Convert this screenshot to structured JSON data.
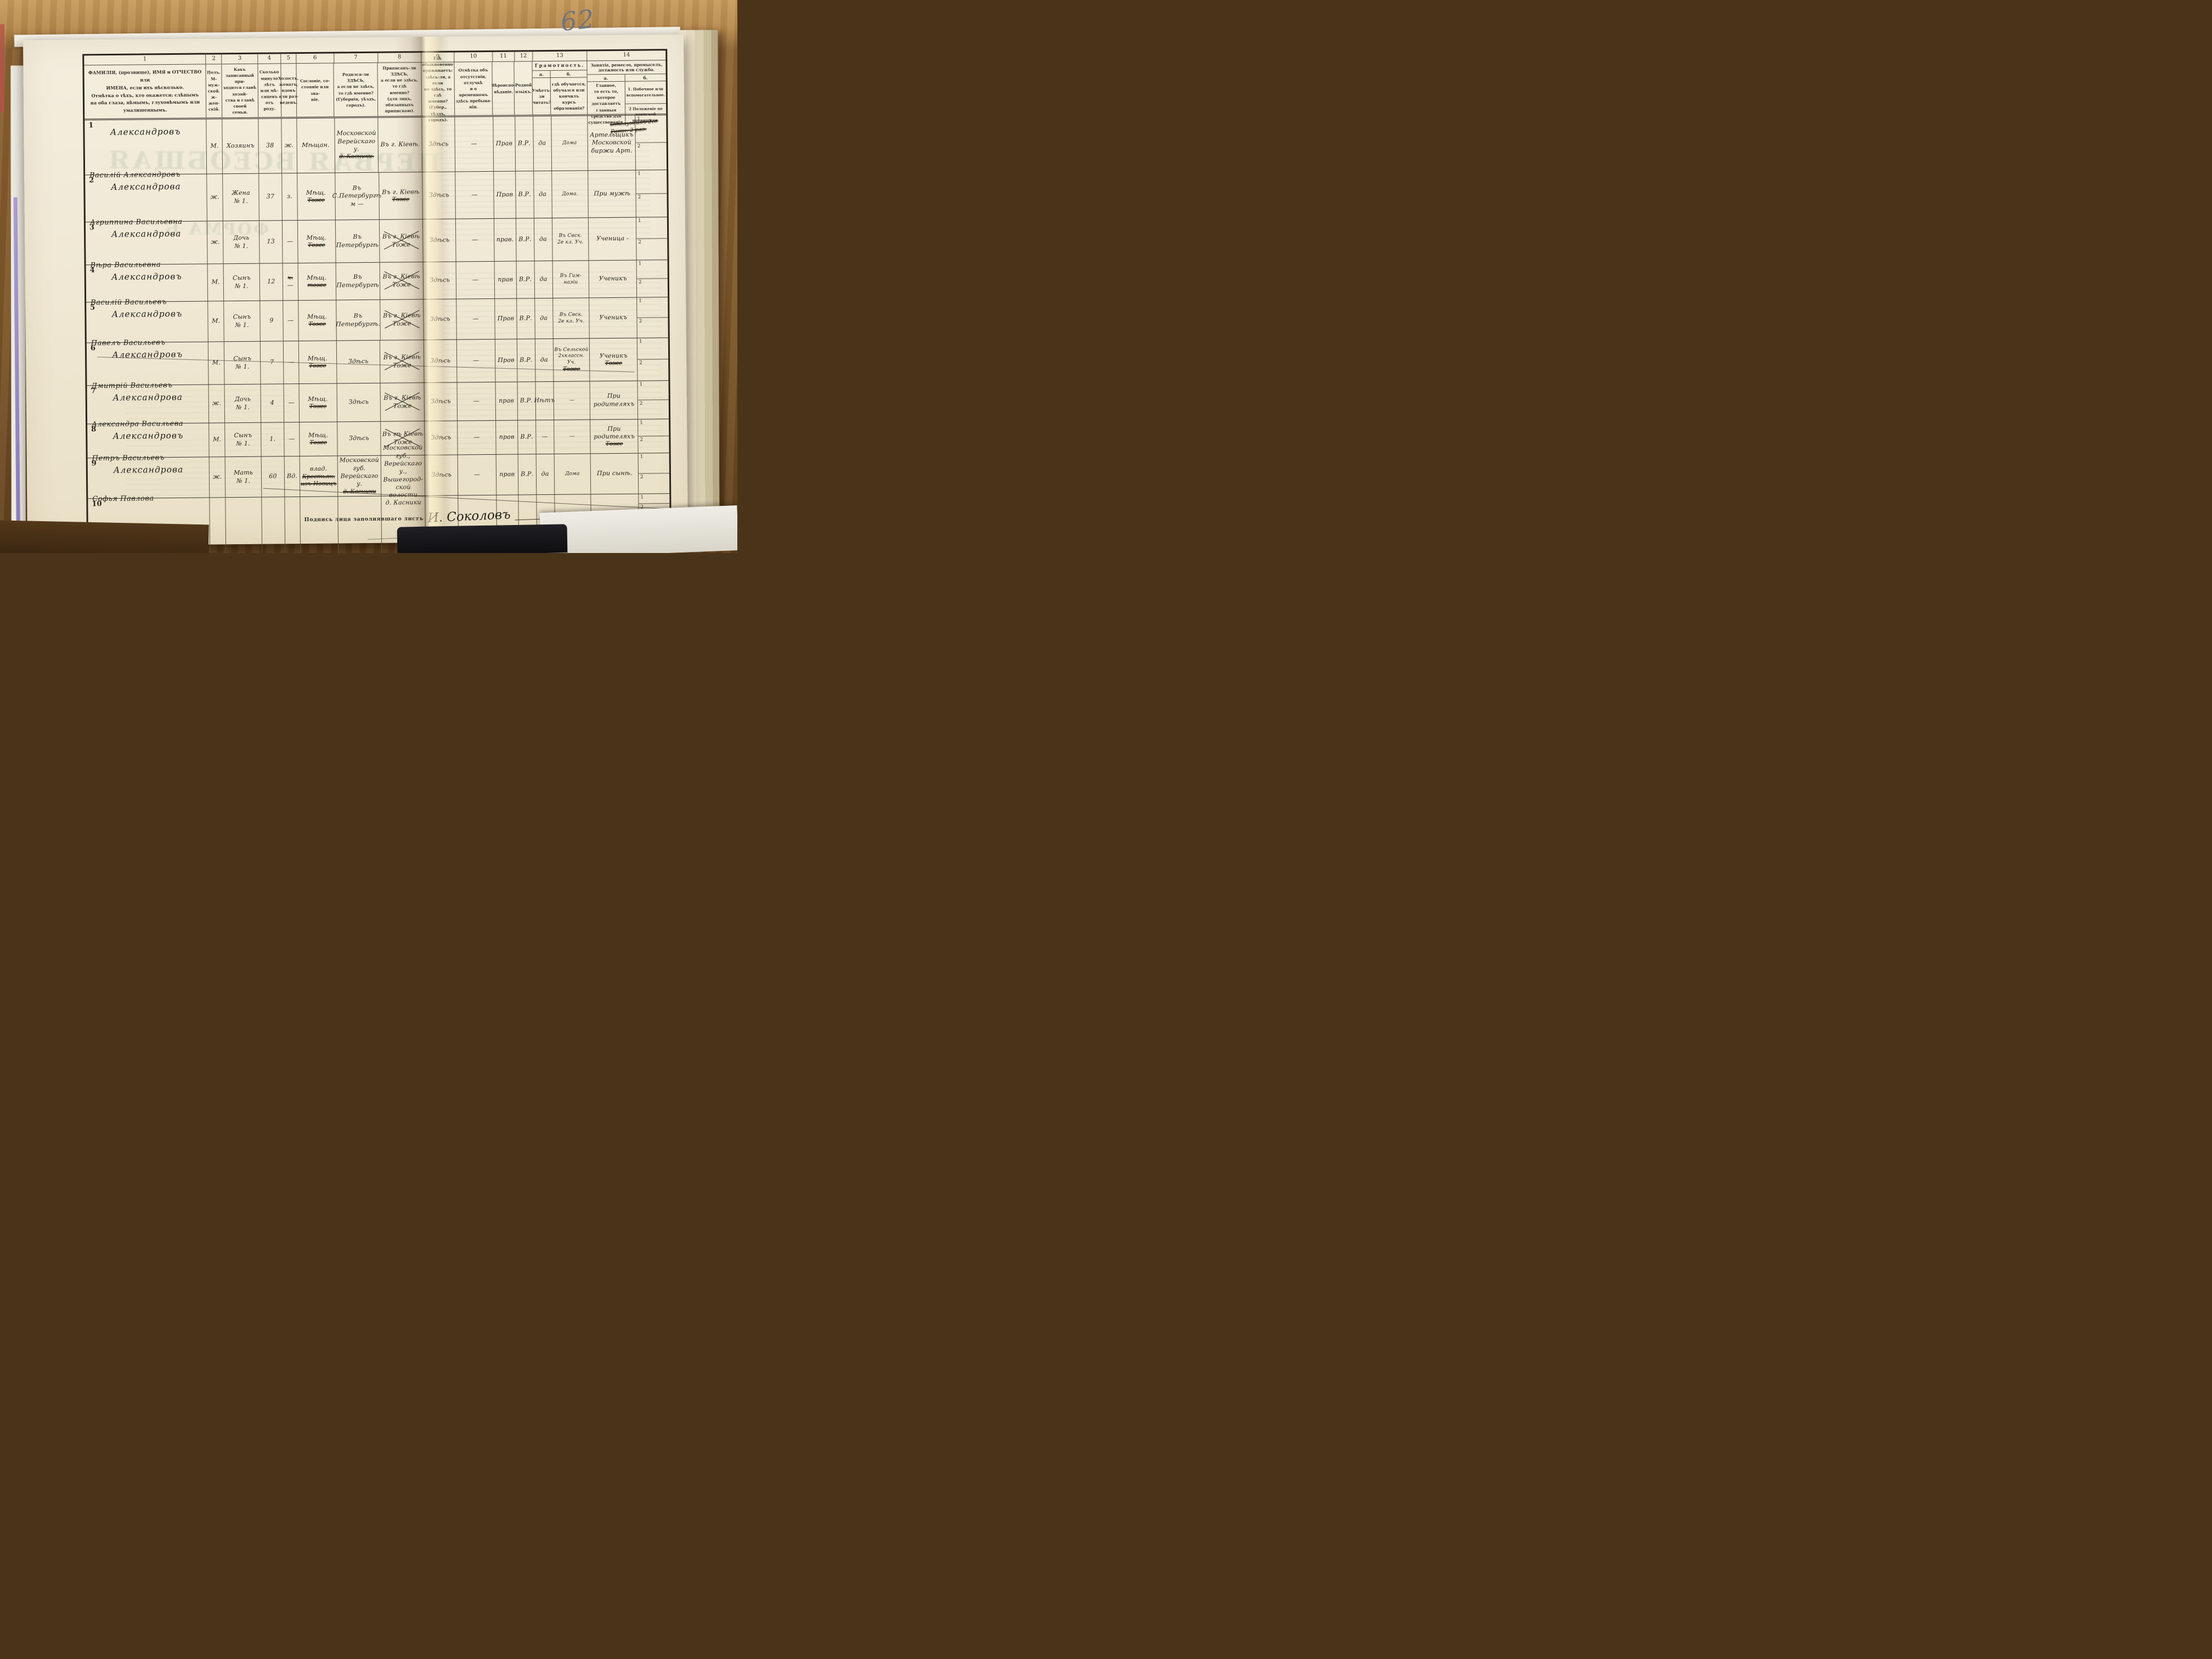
{
  "page": {
    "pencil_number": "62"
  },
  "header": {
    "numbers": [
      "1",
      "2",
      "3",
      "4",
      "5",
      "6",
      "7",
      "8",
      "9",
      "10",
      "11",
      "12",
      "13",
      "14"
    ],
    "c1": "ФАМИЛІЯ, (прозвище), ИМЯ и ОТЧЕСТВО или\nИМЕНА, если ихъ нѣсколько.\nОтмѣтка о тѣхъ, кто окажется: слѣпымъ\nна оба глаза, нѣмымъ, глухонѣмымъ или\nумалишеннымъ.",
    "c2": "Полъ.\nМ-муж-\nской.\nж-жен-\nскій.",
    "c3": "Какъ записанный при-\nходится главѣ хозяй-\nства и главѣ своей\nсемьи.",
    "c4": "Сколько\nминуло\nлѣтъ\nили мѣ-\nсяцевъ\nотъ роду.",
    "c5": "Холостъ,\nженатъ,\nвдовъ\nили раз-\nведенъ.",
    "c6": "Сословіе, со-\nстояніе или зва-\nніе.",
    "c7": "Родился-ли ЗДѢСЬ,\nа если не здѣсь,\nто гдѣ именно?\n(Губернія, уѣздъ, городъ).",
    "c8": "Приписанъ-ли ЗДѢСЬ,\nа если не здѣсь, то гдѣ\nименно?\n(для лицъ, обязанныхъ\nприпискою).",
    "c9": "Гдѣ обыкновенно\nпроживаетъ:\nздѣсь-ли, а если\nне здѣсь, то гдѣ\nименно?\n(Губер., уѣздъ, городъ).",
    "c10": "Отмѣтка объ\nотсутствіи, отлучкѣ\nи о временномъ\nздѣсь пребыва-\nніи.",
    "c11": "Вѣроиспо-\nвѣданіе.",
    "c12": "Родной\nязыкъ.",
    "c13": {
      "title": "Грамотность.",
      "a_label": "а.",
      "b_label": "б.",
      "a": "Умѣетъ-\nли\nчитать?",
      "b": "гдѣ обучается,\nобучался или\nкончилъ курсъ\nобразованія?"
    },
    "c14": {
      "title": "Занятіе, ремесло, промыселъ, должность или служба.",
      "a_label": "а.",
      "b_label": "б.",
      "a": "Главное,\nто есть то, которое доставляетъ\nглавныя средства для существованія.",
      "b1": "1. Побочное или вспомогательное.",
      "b2": "2  Положеніе по воинской повинности."
    }
  },
  "militia_labels": {
    "first": "1",
    "second": "2"
  },
  "rows": [
    {
      "num": "1",
      "surname": "Александровъ",
      "given": "Василій Александровъ",
      "sex": "М.",
      "rel": "Хозяинъ",
      "age": "38",
      "marital": "ж.",
      "marital_x": "",
      "estate": "Мѣщан.",
      "estate_x": "",
      "born": "Московской\nВерейскаго у.",
      "born_x": "д. Касники.",
      "ascr": "Въ г. Кіевѣ.",
      "ascr_x": "",
      "has_x": false,
      "resides": "Здѣсь",
      "absence": "—",
      "faith": "Прав",
      "lang": "В.Р.",
      "reads": "да",
      "edu": "Дома",
      "edu_x": "",
      "occ": "Артельщикъ\nМосковской биржи Арт.",
      "occ_x": "",
      "mil_x": "Отслужилъ 2го\nРатн. 2 раз."
    },
    {
      "num": "2",
      "surname": "Александрова",
      "given": "Агриппина Васильевна",
      "sex": "ж.",
      "rel": "Жена\n№ 1.",
      "age": "37",
      "marital": "з.",
      "marital_x": "",
      "estate": "Мѣщ.",
      "estate_x": "Тоже",
      "born": "Въ С.Петербургѣ\nм —",
      "born_x": "",
      "ascr": "Въ г. Кіевѣ",
      "ascr_x": "Тоже",
      "has_x": false,
      "resides": "Здѣсь",
      "absence": "—",
      "faith": "Прав",
      "lang": "В.Р.",
      "reads": "да",
      "edu": "Дома.",
      "edu_x": "",
      "occ": "При мужѣ",
      "occ_x": "",
      "mil_x": ""
    },
    {
      "num": "3",
      "surname": "Александрова",
      "given": "Вѣра Васильевна",
      "sex": "ж.",
      "rel": "Дочь\n№ 1.",
      "age": "13",
      "marital": "—",
      "marital_x": "",
      "estate": "Мѣщ.",
      "estate_x": "Тоже",
      "born": "Въ Петербургѣ",
      "born_x": "",
      "ascr": "Въ г. Кіевѣ\nТоже",
      "ascr_x": "",
      "has_x": true,
      "resides": "Здѣсь",
      "absence": "—",
      "faith": "прав.",
      "lang": "В.Р.",
      "reads": "да",
      "edu": "Въ Свск.\n2е кл. Уч.",
      "edu_x": "",
      "occ": "Ученица -",
      "occ_x": "",
      "mil_x": ""
    },
    {
      "num": "4",
      "surname": "Александровъ",
      "given": "Василій Васильевъ",
      "sex": "М.",
      "rel": "Сынъ\n№ 1.",
      "age": "12",
      "marital": "—",
      "marital_x": "х.",
      "estate": "Мѣщ.",
      "estate_x": "тоже",
      "born": "Въ Петербургѣ",
      "born_x": "",
      "ascr": "Въ г. Кіевѣ\nТоже",
      "ascr_x": "",
      "has_x": true,
      "resides": "Здѣсь",
      "absence": "—",
      "faith": "прав",
      "lang": "В.Р.",
      "reads": "да",
      "edu": "Въ Гим-\nназіи",
      "edu_x": "",
      "occ": "Ученикъ",
      "occ_x": "",
      "mil_x": ""
    },
    {
      "num": "5",
      "surname": "Александровъ",
      "given": "Павелъ Васильевъ",
      "sex": "М.",
      "rel": "Сынъ\n№ 1.",
      "age": "9",
      "marital": "—",
      "marital_x": "",
      "estate": "Мѣщ.",
      "estate_x": "Тоже",
      "born": "Въ Петербургѣ.",
      "born_x": "",
      "ascr": "Въ г. Кіевѣ\nТоже",
      "ascr_x": "",
      "has_x": true,
      "resides": "Здѣсь",
      "absence": "—",
      "faith": "Прав",
      "lang": "В.Р.",
      "reads": "да",
      "edu": "Въ Свск.\n2е кл. Уч.",
      "edu_x": "",
      "occ": "Ученикъ",
      "occ_x": "",
      "mil_x": ""
    },
    {
      "num": "6",
      "surname": "Александровъ",
      "given": "Дмитрій Васильевъ",
      "sex": "М.",
      "rel": "Сынъ\n№ 1.",
      "age": "7",
      "marital": "—",
      "marital_x": "",
      "estate": "Мѣщ.",
      "estate_x": "Тоже",
      "born": "Здѣсь",
      "born_x": "",
      "ascr": "Въ г. Кіевѣ\nТоже",
      "ascr_x": "",
      "has_x": true,
      "resides": "Здѣсь",
      "absence": "—",
      "faith": "Прав",
      "lang": "В.Р.",
      "reads": "да",
      "edu": "Въ Сельской\n2хклассн. Уч.",
      "edu_x": "Тоже",
      "occ": "Ученикъ",
      "occ_x": "Тоже",
      "mil_x": ""
    },
    {
      "num": "7",
      "surname": "Александрова",
      "given": "Александра Васильева",
      "sex": "ж.",
      "rel": "Дочь\n№ 1.",
      "age": "4",
      "marital": "—",
      "marital_x": "",
      "estate": "Мѣщ.",
      "estate_x": "Тоже",
      "born": "Здѣсь",
      "born_x": "",
      "ascr": "Въ г. Кіевѣ\nТоже",
      "ascr_x": "",
      "has_x": true,
      "resides": "Здѣсь",
      "absence": "—",
      "faith": "прав",
      "lang": "В.Р.",
      "reads": "Нѣтъ",
      "edu": "—",
      "edu_x": "",
      "occ": "При родителяхъ",
      "occ_x": "",
      "mil_x": ""
    },
    {
      "num": "8",
      "surname": "Александровъ",
      "given": "Петръ Васильевъ",
      "sex": "М.",
      "rel": "Сынъ\n№ 1.",
      "age": "1.",
      "marital": "—",
      "marital_x": "",
      "estate": "Мѣщ.",
      "estate_x": "Тоже",
      "born": "Здѣсь",
      "born_x": "",
      "ascr": "Въ гѣ Кіевѣ\nТоже",
      "ascr_x": "",
      "has_x": true,
      "resides": "Здѣсь",
      "absence": "—",
      "faith": "прав",
      "lang": "В.Р.",
      "reads": "—",
      "edu": "—",
      "edu_x": "",
      "occ": "При родителяхъ",
      "occ_x": "Тоже",
      "mil_x": ""
    },
    {
      "num": "9",
      "surname": "Александрова",
      "given": "Софья Павлова",
      "sex": "ж.",
      "rel": "Мать\n№ 1.",
      "age": "60",
      "marital": "Вд.",
      "marital_x": "",
      "estate": "влад.",
      "estate_x": "Крестьян.\nизъ Новицъ",
      "born": "Московской губ.\nВерейскаго у.",
      "born_x": "д. Касники",
      "ascr": "Московской\nгуб., Верейскаго\nу., Вышегород-\nской волости\nд. Касники",
      "ascr_x": "",
      "has_x": false,
      "resides": "Здѣсь",
      "absence": "—",
      "faith": "прав",
      "lang": "В.Р.",
      "reads": "да",
      "edu": "Дома",
      "edu_x": "",
      "occ": "При сынѣ.",
      "occ_x": "",
      "mil_x": ""
    },
    {
      "num": "10",
      "surname": "",
      "given": "",
      "sex": "",
      "rel": "",
      "age": "",
      "marital": "",
      "marital_x": "",
      "estate": "",
      "estate_x": "",
      "born": "",
      "born_x": "",
      "ascr": "",
      "ascr_x": "",
      "has_x": false,
      "resides": "",
      "absence": "",
      "faith": "",
      "lang": "",
      "reads": "",
      "edu": "",
      "edu_x": "",
      "occ": "",
      "occ_x": "",
      "mil_x": ""
    }
  ],
  "signature": {
    "label": "Подпись лица заполнявшаго листъ",
    "name": "И. Соколовъ"
  },
  "bleedthrough": {
    "line1": "ПЕРВАЯ ВСЕОБЩАЯ",
    "line2": "ФОРМА Б."
  }
}
